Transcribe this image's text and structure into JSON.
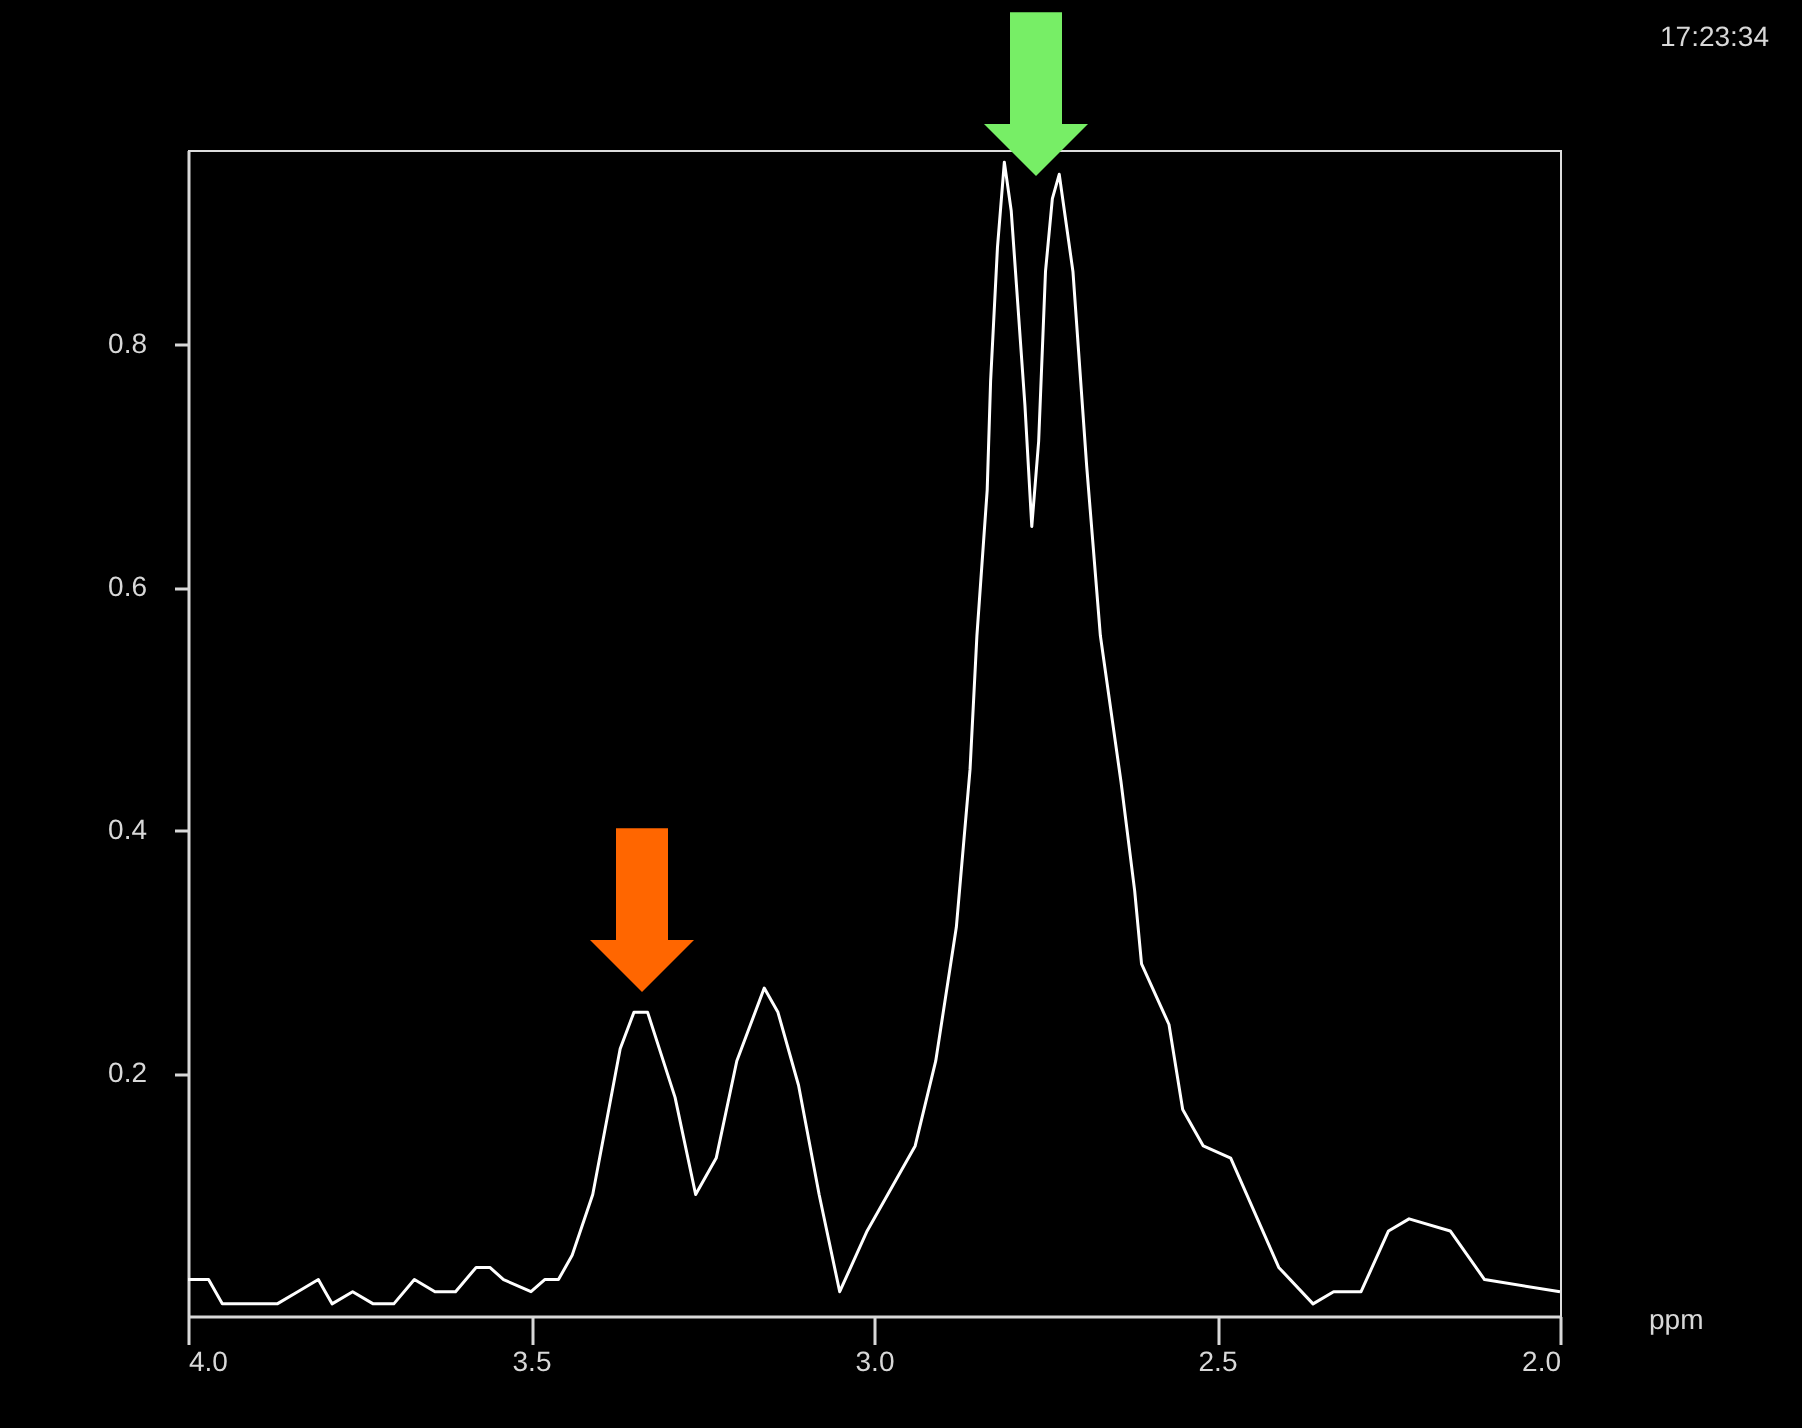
{
  "chart_data": {
    "type": "line",
    "xlabel": "ppm",
    "annotations": [
      "17:23:34"
    ],
    "xlim": [
      4.0,
      2.0
    ],
    "xticks": [
      {
        "value": 4.0,
        "label": "4.0"
      },
      {
        "value": 3.5,
        "label": "3.5"
      },
      {
        "value": 3.0,
        "label": "3.0"
      },
      {
        "value": 2.5,
        "label": "2.5"
      },
      {
        "value": 2.0,
        "label": "2.0"
      }
    ],
    "ylim": [
      0.0,
      0.96
    ],
    "yticks": [
      0.2,
      0.4,
      0.6,
      0.8
    ],
    "grid": false,
    "marker": "none",
    "line_style": "solid",
    "series": [
      {
        "color": "#ffffff",
        "x": [
          4.0,
          3.97,
          3.95,
          3.89,
          3.87,
          3.84,
          3.81,
          3.8,
          3.79,
          3.76,
          3.73,
          3.7,
          3.67,
          3.64,
          3.61,
          3.58,
          3.56,
          3.54,
          3.5,
          3.48,
          3.46,
          3.44,
          3.41,
          3.39,
          3.37,
          3.35,
          3.33,
          3.29,
          3.26,
          3.23,
          3.2,
          3.16,
          3.14,
          3.11,
          3.08,
          3.05,
          3.01,
          2.96,
          2.94,
          2.91,
          2.88,
          2.86,
          2.85,
          2.835,
          2.83,
          2.82,
          2.81,
          2.8,
          2.78,
          2.77,
          2.76,
          2.75,
          2.74,
          2.73,
          2.71,
          2.69,
          2.67,
          2.64,
          2.62,
          2.61,
          2.57,
          2.55,
          2.52,
          2.48,
          2.41,
          2.36,
          2.33,
          2.29,
          2.25,
          2.22,
          2.16,
          2.11,
          2.0
        ],
        "values": [
          0.03,
          0.03,
          0.01,
          0.01,
          0.01,
          0.02,
          0.03,
          0.02,
          0.01,
          0.02,
          0.01,
          0.01,
          0.03,
          0.02,
          0.02,
          0.04,
          0.04,
          0.03,
          0.02,
          0.03,
          0.03,
          0.05,
          0.1,
          0.16,
          0.22,
          0.25,
          0.25,
          0.18,
          0.1,
          0.13,
          0.21,
          0.27,
          0.25,
          0.19,
          0.1,
          0.02,
          0.07,
          0.12,
          0.14,
          0.21,
          0.32,
          0.45,
          0.56,
          0.68,
          0.77,
          0.88,
          0.95,
          0.91,
          0.75,
          0.65,
          0.72,
          0.86,
          0.92,
          0.94,
          0.86,
          0.7,
          0.56,
          0.44,
          0.35,
          0.29,
          0.24,
          0.17,
          0.14,
          0.13,
          0.04,
          0.01,
          0.02,
          0.02,
          0.07,
          0.08,
          0.07,
          0.03,
          0.02
        ]
      }
    ]
  }
}
